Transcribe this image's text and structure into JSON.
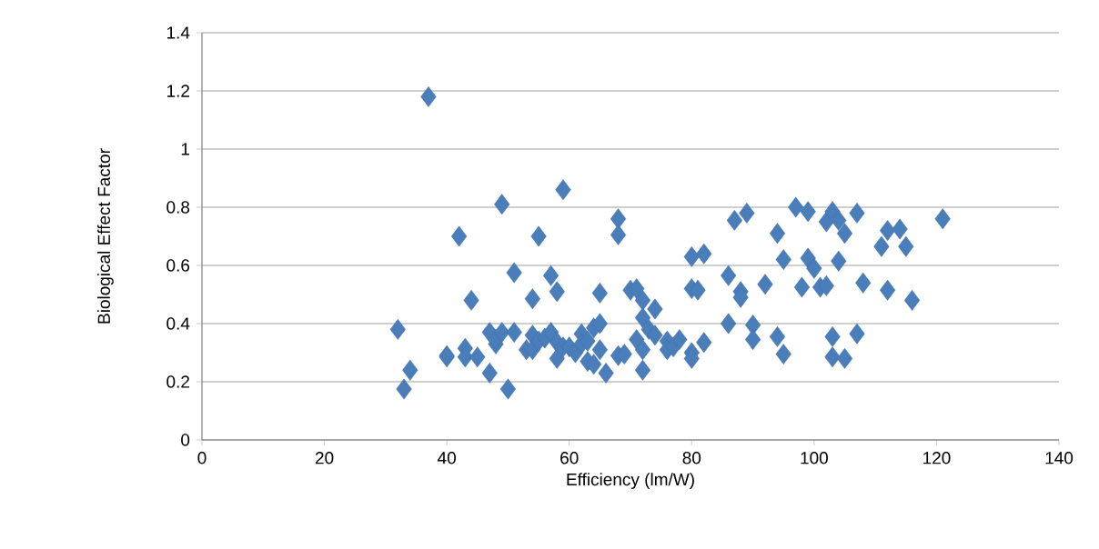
{
  "chart_data": {
    "type": "scatter",
    "xlabel": "Efficiency (lm/W)",
    "ylabel": "Biological Effect Factor",
    "xlim": [
      0,
      140
    ],
    "xticks": [
      0,
      20,
      40,
      60,
      80,
      100,
      120,
      140
    ],
    "ylim": [
      0,
      1.4
    ],
    "yticks": [
      {
        "value": 0,
        "label": "0"
      },
      {
        "value": 0.2,
        "label": "0.2"
      },
      {
        "value": 0.4,
        "label": "0.4"
      },
      {
        "value": 0.6,
        "label": "0.6"
      },
      {
        "value": 0.8,
        "label": "0.8"
      },
      {
        "value": 1,
        "label": "1"
      },
      {
        "value": 1.2,
        "label": "1.2"
      },
      {
        "value": 1.4,
        "label": "1.4"
      }
    ],
    "grid": "y",
    "marker": "diamond",
    "series": [
      {
        "color": "#4a7ebb",
        "x": [
          32,
          33,
          34,
          37,
          40,
          40,
          42,
          43,
          43,
          44,
          45,
          47,
          47,
          48,
          48,
          49,
          49,
          50,
          51,
          51,
          53,
          54,
          54,
          54,
          55,
          55,
          56,
          57,
          57,
          58,
          58,
          58,
          59,
          59,
          60,
          61,
          62,
          62,
          63,
          63,
          64,
          64,
          65,
          65,
          65,
          66,
          68,
          68,
          68,
          69,
          70,
          71,
          71,
          72,
          72,
          72,
          72,
          73,
          74,
          74,
          76,
          76,
          77,
          78,
          80,
          80,
          80,
          80,
          81,
          82,
          82,
          86,
          86,
          87,
          88,
          88,
          89,
          90,
          90,
          92,
          94,
          94,
          95,
          95,
          97,
          98,
          99,
          99,
          100,
          101,
          102,
          102,
          103,
          103,
          103,
          104,
          104,
          105,
          105,
          107,
          107,
          108,
          111,
          112,
          112,
          114,
          115,
          116,
          121
        ],
        "values": [
          0.38,
          0.175,
          0.24,
          1.18,
          0.29,
          0.285,
          0.7,
          0.315,
          0.285,
          0.48,
          0.285,
          0.37,
          0.23,
          0.33,
          0.345,
          0.81,
          0.37,
          0.175,
          0.575,
          0.37,
          0.31,
          0.485,
          0.36,
          0.31,
          0.7,
          0.34,
          0.35,
          0.565,
          0.37,
          0.51,
          0.28,
          0.335,
          0.86,
          0.32,
          0.32,
          0.3,
          0.365,
          0.33,
          0.27,
          0.34,
          0.385,
          0.26,
          0.505,
          0.4,
          0.31,
          0.23,
          0.76,
          0.705,
          0.29,
          0.295,
          0.515,
          0.52,
          0.345,
          0.48,
          0.42,
          0.31,
          0.24,
          0.38,
          0.45,
          0.36,
          0.34,
          0.31,
          0.32,
          0.345,
          0.63,
          0.52,
          0.3,
          0.28,
          0.515,
          0.64,
          0.335,
          0.565,
          0.4,
          0.755,
          0.51,
          0.49,
          0.78,
          0.395,
          0.345,
          0.535,
          0.71,
          0.355,
          0.62,
          0.295,
          0.8,
          0.525,
          0.785,
          0.625,
          0.59,
          0.525,
          0.75,
          0.53,
          0.785,
          0.355,
          0.285,
          0.755,
          0.615,
          0.71,
          0.28,
          0.78,
          0.365,
          0.54,
          0.665,
          0.72,
          0.515,
          0.725,
          0.665,
          0.48,
          0.76
        ]
      }
    ]
  }
}
